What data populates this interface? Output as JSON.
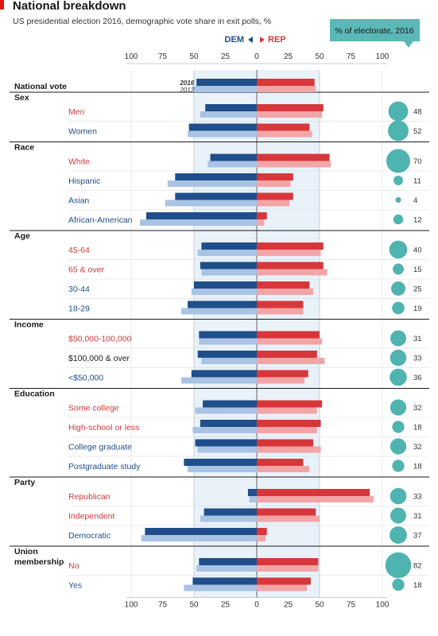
{
  "chart_data": {
    "type": "bar",
    "title": "National breakdown",
    "subtitle": "US presidential election 2016, demographic vote share in exit polls, %",
    "xlim": [
      -100,
      100
    ],
    "x_ticks": [
      "100",
      "75",
      "50",
      "25",
      "0",
      "25",
      "50",
      "75",
      "100"
    ],
    "legend": {
      "dem": "DEM",
      "rep": "REP"
    },
    "electorate_label": "% of electorate, 2016",
    "year_labels": [
      "2016",
      "2012"
    ],
    "colors": {
      "dem2016": "#1f4e8a",
      "dem2012": "#a9c3e4",
      "rep2016": "#d7373a",
      "rep2012": "#f2a5a7",
      "circle": "#4fb3b0",
      "accent_red": "#e3120b",
      "box": "#5ab8b6",
      "band": "#e9f1f9"
    },
    "sections": [
      {
        "name": "National vote",
        "rows": [
          {
            "label": "",
            "dem2016": 48,
            "dem2012": 51,
            "rep2016": 46,
            "rep2012": 47
          }
        ]
      },
      {
        "name": "Sex",
        "rows": [
          {
            "label": "Men",
            "winner": "rep",
            "dem2016": 41,
            "dem2012": 45,
            "rep2016": 53,
            "rep2012": 52,
            "electorate": 48
          },
          {
            "label": "Women",
            "winner": "dem",
            "dem2016": 54,
            "dem2012": 55,
            "rep2016": 42,
            "rep2012": 44,
            "electorate": 52
          }
        ]
      },
      {
        "name": "Race",
        "rows": [
          {
            "label": "White",
            "winner": "rep",
            "dem2016": 37,
            "dem2012": 39,
            "rep2016": 58,
            "rep2012": 59,
            "electorate": 70
          },
          {
            "label": "Hispanic",
            "winner": "dem",
            "dem2016": 65,
            "dem2012": 71,
            "rep2016": 29,
            "rep2012": 27,
            "electorate": 11
          },
          {
            "label": "Asian",
            "winner": "dem",
            "dem2016": 65,
            "dem2012": 73,
            "rep2016": 29,
            "rep2012": 26,
            "electorate": 4
          },
          {
            "label": "African-American",
            "winner": "dem",
            "dem2016": 88,
            "dem2012": 93,
            "rep2016": 8,
            "rep2012": 6,
            "electorate": 12
          }
        ]
      },
      {
        "name": "Age",
        "rows": [
          {
            "label": "45-64",
            "winner": "rep",
            "dem2016": 44,
            "dem2012": 47,
            "rep2016": 53,
            "rep2012": 51,
            "electorate": 40
          },
          {
            "label": "65 & over",
            "winner": "rep",
            "dem2016": 45,
            "dem2012": 44,
            "rep2016": 53,
            "rep2012": 56,
            "electorate": 15
          },
          {
            "label": "30-44",
            "winner": "dem",
            "dem2016": 50,
            "dem2012": 52,
            "rep2016": 42,
            "rep2012": 45,
            "electorate": 25
          },
          {
            "label": "18-29",
            "winner": "dem",
            "dem2016": 55,
            "dem2012": 60,
            "rep2016": 37,
            "rep2012": 37,
            "electorate": 19
          }
        ]
      },
      {
        "name": "Income",
        "rows": [
          {
            "label": "$50,000-100,000",
            "winner": "rep",
            "dem2016": 46,
            "dem2012": 46,
            "rep2016": 50,
            "rep2012": 52,
            "electorate": 31
          },
          {
            "label": "$100,000 & over",
            "winner": "neutral",
            "dem2016": 47,
            "dem2012": 44,
            "rep2016": 48,
            "rep2012": 54,
            "electorate": 33
          },
          {
            "label": "<$50,000",
            "winner": "dem",
            "dem2016": 52,
            "dem2012": 60,
            "rep2016": 41,
            "rep2012": 38,
            "electorate": 36
          }
        ]
      },
      {
        "name": "Education",
        "rows": [
          {
            "label": "Some college",
            "winner": "rep",
            "dem2016": 43,
            "dem2012": 49,
            "rep2016": 52,
            "rep2012": 48,
            "electorate": 32
          },
          {
            "label": "High-school or less",
            "winner": "rep",
            "dem2016": 45,
            "dem2012": 51,
            "rep2016": 51,
            "rep2012": 48,
            "electorate": 18
          },
          {
            "label": "College graduate",
            "winner": "dem",
            "dem2016": 49,
            "dem2012": 47,
            "rep2016": 45,
            "rep2012": 51,
            "electorate": 32
          },
          {
            "label": "Postgraduate study",
            "winner": "dem",
            "dem2016": 58,
            "dem2012": 55,
            "rep2016": 37,
            "rep2012": 42,
            "electorate": 18
          }
        ]
      },
      {
        "name": "Party",
        "rows": [
          {
            "label": "Republican",
            "winner": "rep",
            "dem2016": 7,
            "dem2012": 6,
            "rep2016": 90,
            "rep2012": 93,
            "electorate": 33
          },
          {
            "label": "Independent",
            "winner": "rep",
            "dem2016": 42,
            "dem2012": 45,
            "rep2016": 47,
            "rep2012": 50,
            "electorate": 31
          },
          {
            "label": "Democratic",
            "winner": "dem",
            "dem2016": 89,
            "dem2012": 92,
            "rep2016": 8,
            "rep2012": 7,
            "electorate": 37
          }
        ]
      },
      {
        "name": "Union\nmembership",
        "rows": [
          {
            "label": "No",
            "winner": "rep",
            "dem2016": 46,
            "dem2012": 48,
            "rep2016": 49,
            "rep2012": 49,
            "electorate": 82
          },
          {
            "label": "Yes",
            "winner": "dem",
            "dem2016": 51,
            "dem2012": 58,
            "rep2016": 43,
            "rep2012": 40,
            "electorate": 18
          }
        ]
      }
    ]
  }
}
